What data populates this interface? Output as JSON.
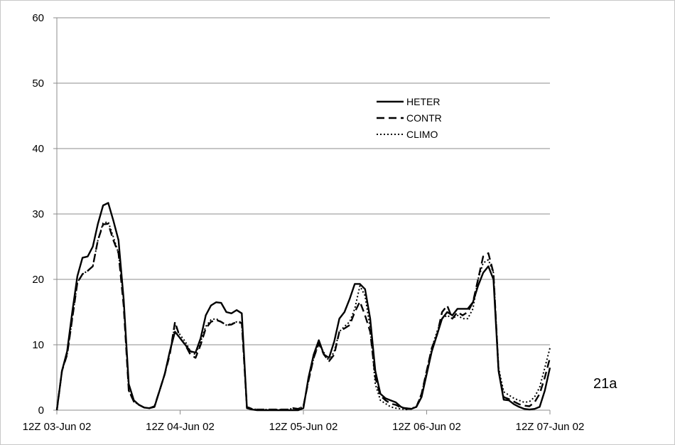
{
  "chart_data": {
    "type": "line",
    "title": "",
    "xlabel": "",
    "ylabel": "",
    "ylim": [
      0,
      60
    ],
    "yticks": [
      "0",
      "10",
      "20",
      "30",
      "40",
      "50",
      "60"
    ],
    "xlim": [
      0,
      96
    ],
    "x_tick_positions": [
      0,
      24,
      48,
      72,
      96
    ],
    "xticks": [
      "12Z 03-Jun 02",
      "12Z 04-Jun 02",
      "12Z 05-Jun 02",
      "12Z 06-Jun 02",
      "12Z 07-Jun 02"
    ],
    "grid": "horizontal",
    "legend_position": "top-right",
    "annotation": "21a",
    "series": [
      {
        "name": "HETER",
        "color": "#000000",
        "dash": "solid",
        "x": [
          0,
          1,
          2,
          3,
          4,
          5,
          6,
          7,
          8,
          9,
          10,
          11,
          12,
          13,
          14,
          15,
          16,
          17,
          18,
          19,
          20,
          21,
          22,
          23,
          24,
          25,
          26,
          27,
          28,
          29,
          30,
          31,
          32,
          33,
          34,
          35,
          36,
          37,
          38,
          39,
          40,
          41,
          42,
          43,
          44,
          45,
          46,
          47,
          48,
          49,
          50,
          51,
          52,
          53,
          54,
          55,
          56,
          57,
          58,
          59,
          60,
          61,
          62,
          63,
          64,
          65,
          66,
          67,
          68,
          69,
          70,
          71,
          72,
          73,
          74,
          75,
          76,
          77,
          78,
          79,
          80,
          81,
          82,
          83,
          84,
          85,
          86,
          87,
          88,
          89,
          90,
          91,
          92,
          93,
          94,
          95,
          96
        ],
        "y": [
          0,
          6,
          9,
          15,
          20.5,
          23.3,
          23.5,
          25,
          28.5,
          31.3,
          31.7,
          29,
          26,
          17,
          4,
          1.5,
          0.8,
          0.4,
          0.3,
          0.5,
          3,
          5.5,
          9,
          12,
          11,
          10,
          9,
          8.8,
          11,
          14.5,
          16,
          16.5,
          16.4,
          15,
          14.8,
          15.3,
          14.8,
          0.3,
          0.1,
          0,
          0,
          0,
          0,
          0,
          0,
          0,
          0,
          0,
          0.3,
          5,
          8.5,
          10.7,
          8.5,
          8,
          10.5,
          14,
          15,
          17,
          19.3,
          19.3,
          18.5,
          14,
          6,
          2.5,
          1.8,
          1.5,
          1.2,
          0.5,
          0.2,
          0.2,
          0.5,
          2,
          5.5,
          9,
          11.5,
          14,
          15,
          14.5,
          15.5,
          15.5,
          15.5,
          16.5,
          19,
          21,
          22,
          20,
          6,
          1.6,
          1.5,
          0.9,
          0.5,
          0.2,
          0.1,
          0.2,
          0.5,
          3,
          6.5
        ]
      },
      {
        "name": "CONTR",
        "color": "#000000",
        "dash": "dashed",
        "x": [
          0,
          1,
          2,
          3,
          4,
          5,
          6,
          7,
          8,
          9,
          10,
          11,
          12,
          13,
          14,
          15,
          16,
          17,
          18,
          19,
          20,
          21,
          22,
          23,
          24,
          25,
          26,
          27,
          28,
          29,
          30,
          31,
          32,
          33,
          34,
          35,
          36,
          37,
          38,
          39,
          40,
          41,
          42,
          43,
          44,
          45,
          46,
          47,
          48,
          49,
          50,
          51,
          52,
          53,
          54,
          55,
          56,
          57,
          58,
          59,
          60,
          61,
          62,
          63,
          64,
          65,
          66,
          67,
          68,
          69,
          70,
          71,
          72,
          73,
          74,
          75,
          76,
          77,
          78,
          79,
          80,
          81,
          82,
          83,
          84,
          85,
          86,
          87,
          88,
          89,
          90,
          91,
          92,
          93,
          94,
          95,
          96
        ],
        "y": [
          0,
          6,
          8.5,
          14,
          19.5,
          20.8,
          21.3,
          22,
          26,
          28.4,
          28.5,
          26,
          24,
          16,
          3,
          1.3,
          0.8,
          0.4,
          0.3,
          0.6,
          3,
          5.5,
          8.5,
          13.5,
          11,
          10,
          8.5,
          8,
          10,
          12.5,
          13.5,
          13.8,
          13.5,
          13,
          13.1,
          13.5,
          13.3,
          0.5,
          0.2,
          0.1,
          0.1,
          0.1,
          0.1,
          0.1,
          0.1,
          0.1,
          0.3,
          0.2,
          0.6,
          4.5,
          8,
          10.2,
          8.5,
          7.5,
          8.5,
          12,
          12.5,
          13,
          15,
          16.6,
          14.5,
          12,
          5,
          2.2,
          1.5,
          1,
          0.8,
          0.4,
          0.3,
          0.2,
          0.5,
          2.5,
          6,
          9.5,
          11.5,
          15,
          16,
          14,
          15,
          14.5,
          15,
          16.5,
          20,
          23.5,
          24,
          21,
          6,
          2,
          1.7,
          1.3,
          0.9,
          0.7,
          0.6,
          1.2,
          2.5,
          5,
          8
        ]
      },
      {
        "name": "CLIMO",
        "color": "#000000",
        "dash": "dotted",
        "x": [
          0,
          1,
          2,
          3,
          4,
          5,
          6,
          7,
          8,
          9,
          10,
          11,
          12,
          13,
          14,
          15,
          16,
          17,
          18,
          19,
          20,
          21,
          22,
          23,
          24,
          25,
          26,
          27,
          28,
          29,
          30,
          31,
          32,
          33,
          34,
          35,
          36,
          37,
          38,
          39,
          40,
          41,
          42,
          43,
          44,
          45,
          46,
          47,
          48,
          49,
          50,
          51,
          52,
          53,
          54,
          55,
          56,
          57,
          58,
          59,
          60,
          61,
          62,
          63,
          64,
          65,
          66,
          67,
          68,
          69,
          70,
          71,
          72,
          73,
          74,
          75,
          76,
          77,
          78,
          79,
          80,
          81,
          82,
          83,
          84,
          85,
          86,
          87,
          88,
          89,
          90,
          91,
          92,
          93,
          94,
          95,
          96
        ],
        "y": [
          0,
          6,
          8.5,
          14,
          19.5,
          20.8,
          21.3,
          22,
          26,
          28.6,
          28.8,
          26.5,
          24,
          17,
          3,
          1.3,
          0.8,
          0.4,
          0.3,
          0.6,
          3,
          5.5,
          8.8,
          13,
          11.5,
          10.5,
          9,
          8.5,
          10.5,
          12.8,
          13.8,
          14,
          13.5,
          13,
          13.2,
          13.5,
          13.5,
          0.5,
          0.2,
          0.1,
          0.1,
          0.1,
          0.1,
          0.1,
          0.1,
          0.1,
          0.3,
          0.2,
          0.6,
          4.5,
          8,
          10.2,
          8.8,
          7.5,
          9,
          12,
          12.8,
          13.5,
          15.5,
          19,
          17.5,
          12.5,
          4,
          1.5,
          1,
          0.5,
          0.3,
          0.2,
          0.1,
          0.3,
          0.5,
          2.5,
          6,
          9.5,
          12,
          14,
          14.5,
          14,
          14.5,
          14,
          14,
          15.5,
          20,
          22.5,
          23,
          21,
          6.5,
          2.8,
          2.3,
          1.8,
          1.5,
          1.2,
          1.3,
          2,
          3.5,
          6.5,
          9.5
        ]
      }
    ]
  }
}
